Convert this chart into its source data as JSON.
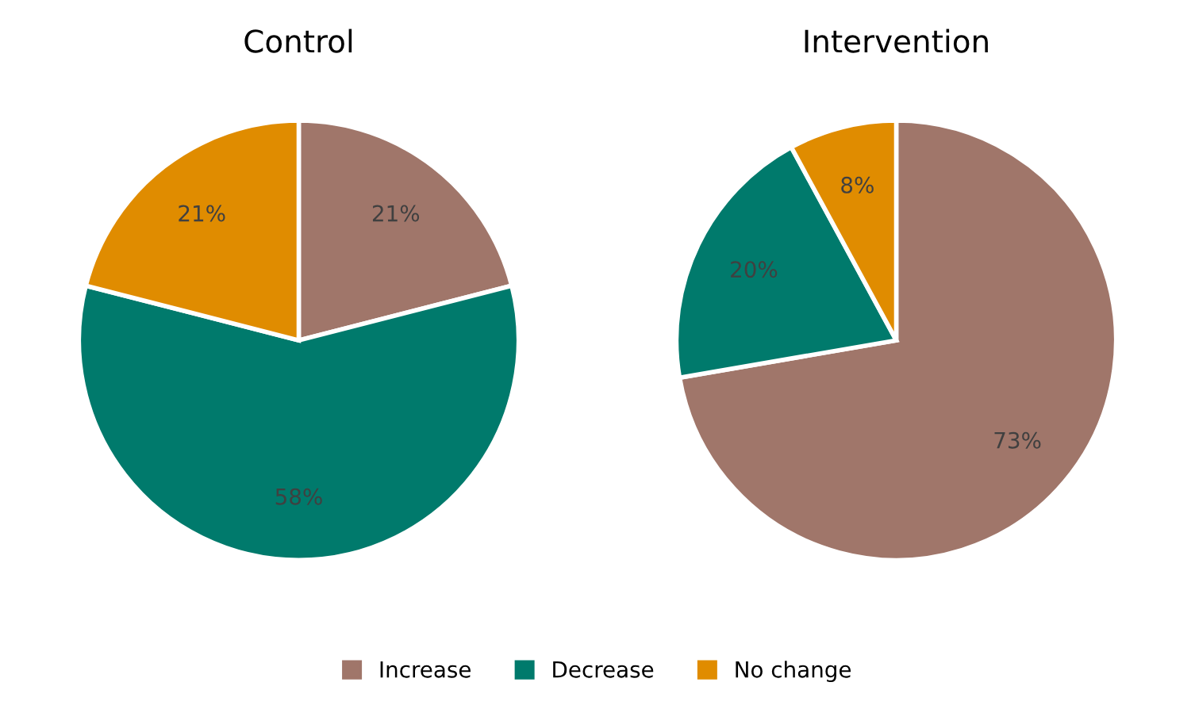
{
  "chart_data": [
    {
      "type": "pie",
      "title": "Control",
      "categories": [
        "Increase",
        "Decrease",
        "No change"
      ],
      "values": [
        21,
        58,
        21
      ],
      "colors": [
        "#a0766a",
        "#007a6c",
        "#e08c00"
      ],
      "value_labels": [
        "21%",
        "58%",
        "21%"
      ],
      "legend": "bottom"
    },
    {
      "type": "pie",
      "title": "Intervention",
      "categories": [
        null,
        null,
        null
      ],
      "values": [
        73,
        20,
        8
      ],
      "colors": [
        "#a0766a",
        "#007a6c",
        "#e08c00"
      ],
      "value_labels": [
        "73%",
        "20%",
        "8%"
      ]
    }
  ]
}
